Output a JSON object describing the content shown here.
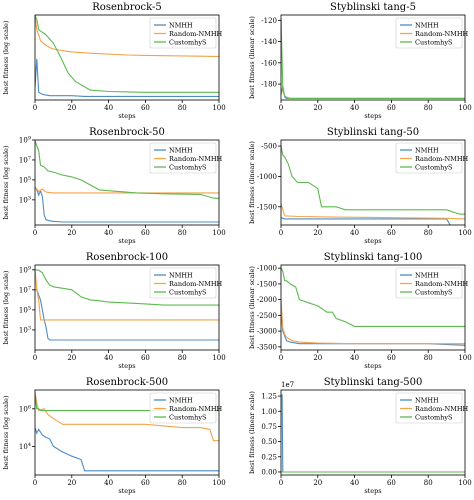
{
  "colors": {
    "NMHH": "#4c8cc6",
    "Random-NMHH": "#f2a34c",
    "CustomhyS": "#5cba4e"
  },
  "chart_data": [
    {
      "type": "line",
      "title": "Rosenbrock-5",
      "xlabel": "steps",
      "ylabel": "best fitness (log scale)",
      "yscale": "log",
      "xlim": [
        0,
        100
      ],
      "ylim": [
        1,
        1000000
      ],
      "xticks": [
        "0",
        "20",
        "40",
        "60",
        "80",
        "100"
      ],
      "yticks": [],
      "legend": "top-right",
      "grid": false,
      "series": [
        {
          "name": "NMHH",
          "x": [
            0,
            1,
            2,
            3,
            4,
            6,
            8,
            20,
            27,
            55,
            100
          ],
          "y": [
            8,
            800,
            3.5,
            3,
            2.5,
            2.2,
            2,
            2,
            1.8,
            1.8,
            1.8
          ]
        },
        {
          "name": "Random-NMHH",
          "x": [
            0,
            1,
            2,
            3,
            5,
            8,
            10,
            15,
            20,
            30,
            50,
            60,
            80,
            98,
            100
          ],
          "y": [
            800000,
            90000,
            40000,
            15000,
            9000,
            5000,
            4000,
            3000,
            2500,
            2000,
            1500,
            1400,
            1300,
            1200,
            1200
          ]
        },
        {
          "name": "CustomhyS",
          "x": [
            0,
            1,
            2,
            4,
            6,
            8,
            10,
            14,
            18,
            22,
            30,
            40,
            60,
            80,
            100
          ],
          "y": [
            900000,
            500000,
            90000,
            60000,
            40000,
            20000,
            10000,
            1000,
            80,
            20,
            5,
            4,
            3.5,
            3.5,
            3.5
          ]
        }
      ]
    },
    {
      "type": "line",
      "title": "Styblinski tang-5",
      "xlabel": "steps",
      "ylabel": "best fitness (linear scale)",
      "yscale": "linear",
      "xlim": [
        0,
        100
      ],
      "ylim": [
        -195,
        -115
      ],
      "xticks": [
        "0",
        "20",
        "40",
        "60",
        "80",
        "100"
      ],
      "yticks": [
        "-180",
        "-160",
        "-140",
        "-120"
      ],
      "legend": "top-right",
      "grid": false,
      "series": [
        {
          "name": "NMHH",
          "x": [
            0,
            1,
            2,
            3,
            100
          ],
          "y": [
            -190,
            -182,
            -192,
            -193.5,
            -193.5
          ]
        },
        {
          "name": "Random-NMHH",
          "x": [
            0,
            1,
            2,
            3,
            4,
            100
          ],
          "y": [
            -190,
            -185,
            -191,
            -192.5,
            -193.5,
            -193.5
          ]
        },
        {
          "name": "CustomhyS",
          "x": [
            0,
            0.5,
            1,
            2,
            3,
            5,
            100
          ],
          "y": [
            -118,
            -150,
            -185,
            -191,
            -192.5,
            -193.5,
            -193.5
          ]
        }
      ]
    },
    {
      "type": "line",
      "title": "Rosenbrock-50",
      "xlabel": "steps",
      "ylabel": "best fitness (log scale)",
      "yscale": "log",
      "xlim": [
        0,
        100
      ],
      "ylim": [
        3,
        1000000000
      ],
      "xticks": [
        "0",
        "20",
        "40",
        "60",
        "80",
        "100"
      ],
      "yticks": [
        "10^3",
        "10^5",
        "10^7",
        "10^9"
      ],
      "legend": "top-right",
      "grid": false,
      "series": [
        {
          "name": "NMHH",
          "x": [
            0,
            1,
            2,
            3,
            4,
            5,
            6,
            8,
            10,
            15,
            100
          ],
          "y": [
            20000,
            10000,
            3000,
            8000,
            2000,
            30,
            10,
            8,
            7,
            6,
            6
          ]
        },
        {
          "name": "Random-NMHH",
          "x": [
            0,
            2,
            4,
            6,
            10,
            20,
            100
          ],
          "y": [
            20000,
            7000,
            12000,
            6000,
            5000,
            5000,
            5000
          ]
        },
        {
          "name": "CustomhyS",
          "x": [
            0,
            2,
            3,
            5,
            7,
            10,
            15,
            20,
            25,
            35,
            45,
            55,
            70,
            90,
            97,
            100
          ],
          "y": [
            800000000,
            80000000,
            3000000,
            2000000,
            800000,
            600000,
            300000,
            200000,
            100000,
            10000,
            7000,
            5000,
            4000,
            3500,
            1500,
            1400
          ]
        }
      ]
    },
    {
      "type": "line",
      "title": "Styblinski tang-50",
      "xlabel": "steps",
      "ylabel": "best fitness (linear scale)",
      "yscale": "linear",
      "xlim": [
        0,
        100
      ],
      "ylim": [
        -1800,
        -400
      ],
      "xticks": [
        "0",
        "20",
        "40",
        "60",
        "80",
        "100"
      ],
      "yticks": [
        "-1500",
        "-1000",
        "-500"
      ],
      "legend": "top-right",
      "grid": false,
      "series": [
        {
          "name": "NMHH",
          "x": [
            0,
            2,
            10,
            30,
            60,
            90,
            93,
            100
          ],
          "y": [
            -1680,
            -1700,
            -1700,
            -1700,
            -1700,
            -1700,
            -1860,
            -1860
          ]
        },
        {
          "name": "Random-NMHH",
          "x": [
            0,
            2,
            10,
            30,
            60,
            90,
            100
          ],
          "y": [
            -1450,
            -1650,
            -1660,
            -1670,
            -1680,
            -1690,
            -1700
          ]
        },
        {
          "name": "CustomhyS",
          "x": [
            0,
            1,
            2,
            4,
            6,
            9,
            15,
            20,
            22,
            25,
            30,
            35,
            45,
            55,
            75,
            90,
            97,
            100
          ],
          "y": [
            -500,
            -650,
            -680,
            -800,
            -1000,
            -1100,
            -1100,
            -1200,
            -1500,
            -1500,
            -1500,
            -1550,
            -1550,
            -1550,
            -1550,
            -1550,
            -1620,
            -1620
          ]
        }
      ]
    },
    {
      "type": "line",
      "title": "Rosenbrock-100",
      "xlabel": "steps",
      "ylabel": "best fitness (log scale)",
      "yscale": "log",
      "xlim": [
        0,
        100
      ],
      "ylim": [
        10,
        3000000000
      ],
      "xticks": [
        "0",
        "20",
        "40",
        "60",
        "80",
        "100"
      ],
      "yticks": [
        "10^3",
        "10^5",
        "10^7",
        "10^9"
      ],
      "legend": "top-right",
      "grid": false,
      "series": [
        {
          "name": "NMHH",
          "x": [
            0,
            1,
            2,
            3,
            5,
            6,
            7,
            8,
            10,
            15,
            100
          ],
          "y": [
            10000000,
            10000000,
            3000000,
            1000000,
            10000,
            2000,
            150,
            100,
            100,
            100,
            100
          ]
        },
        {
          "name": "Random-NMHH",
          "x": [
            0,
            1,
            2,
            3,
            4,
            100
          ],
          "y": [
            1000000000,
            10000000,
            1000000,
            10000,
            10000,
            10000
          ]
        },
        {
          "name": "CustomhyS",
          "x": [
            0,
            2,
            4,
            6,
            8,
            10,
            20,
            25,
            30,
            35,
            40,
            50,
            60,
            70,
            80,
            90,
            100
          ],
          "y": [
            1000000000,
            900000000,
            500000000,
            100000000,
            30000000,
            20000000,
            10000000,
            2000000,
            1000000,
            800000,
            600000,
            500000,
            400000,
            300000,
            300000,
            300000,
            300000
          ]
        }
      ]
    },
    {
      "type": "line",
      "title": "Styblinski tang-100",
      "xlabel": "steps",
      "ylabel": "best fitness (linear scale)",
      "yscale": "linear",
      "xlim": [
        0,
        100
      ],
      "ylim": [
        -3600,
        -900
      ],
      "xticks": [
        "0",
        "20",
        "40",
        "60",
        "80",
        "100"
      ],
      "yticks": [
        "-3500",
        "-3000",
        "-2500",
        "-2000",
        "-1500",
        "-1000"
      ],
      "legend": "top-right",
      "grid": false,
      "series": [
        {
          "name": "NMHH",
          "x": [
            0,
            1,
            3,
            5,
            10,
            20,
            40,
            60,
            80,
            100
          ],
          "y": [
            -2300,
            -3000,
            -3300,
            -3350,
            -3400,
            -3400,
            -3400,
            -3400,
            -3400,
            -3450
          ]
        },
        {
          "name": "Random-NMHH",
          "x": [
            0,
            1,
            2,
            3,
            6,
            10,
            20,
            40,
            60,
            80,
            100
          ],
          "y": [
            -2000,
            -2900,
            -3100,
            -3200,
            -3300,
            -3350,
            -3380,
            -3400,
            -3400,
            -3400,
            -3400
          ]
        },
        {
          "name": "CustomhyS",
          "x": [
            0,
            1,
            2,
            3,
            5,
            8,
            10,
            15,
            20,
            25,
            28,
            30,
            35,
            40,
            60,
            80,
            100
          ],
          "y": [
            -1000,
            -1100,
            -1400,
            -1400,
            -1500,
            -1600,
            -2000,
            -2100,
            -2200,
            -2400,
            -2400,
            -2600,
            -2700,
            -2850,
            -2850,
            -2850,
            -2850
          ]
        }
      ]
    },
    {
      "type": "line",
      "title": "Rosenbrock-500",
      "xlabel": "steps",
      "ylabel": "best fitness (log scale)",
      "yscale": "log",
      "xlim": [
        0,
        100
      ],
      "ylim": [
        300,
        10000000
      ],
      "xticks": [
        "0",
        "20",
        "40",
        "60",
        "80",
        "100"
      ],
      "yticks": [
        "10^4",
        "10^6"
      ],
      "legend": "top-right",
      "grid": false,
      "series": [
        {
          "name": "NMHH",
          "x": [
            0,
            1,
            2,
            4,
            6,
            8,
            10,
            15,
            20,
            25,
            27,
            30,
            50,
            100
          ],
          "y": [
            100000,
            50000,
            80000,
            40000,
            30000,
            25000,
            10000,
            5000,
            3000,
            2000,
            500,
            500,
            500,
            500
          ]
        },
        {
          "name": "Random-NMHH",
          "x": [
            0,
            1,
            2,
            3,
            5,
            7,
            10,
            15,
            20,
            40,
            60,
            80,
            90,
            95,
            97,
            100
          ],
          "y": [
            8000000,
            2000000,
            800000,
            900000,
            1000000,
            500000,
            300000,
            150000,
            150000,
            150000,
            150000,
            100000,
            100000,
            80000,
            20000,
            20000
          ]
        },
        {
          "name": "CustomhyS",
          "x": [
            0,
            1,
            2,
            3,
            5,
            100
          ],
          "y": [
            5000000,
            1000000,
            1000000,
            800000,
            800000,
            800000
          ]
        }
      ]
    },
    {
      "type": "line",
      "title": "Styblinski tang-500",
      "xlabel": "steps",
      "ylabel": "best fitness (linear scale)",
      "yscale": "linear",
      "xlim": [
        0,
        100
      ],
      "ylim": [
        -0.05,
        1.35
      ],
      "offset_label": "1e7",
      "xticks": [
        "0",
        "20",
        "40",
        "60",
        "80",
        "100"
      ],
      "yticks": [
        "0.00",
        "0.25",
        "0.50",
        "0.75",
        "1.00",
        "1.25"
      ],
      "legend": "top-right",
      "grid": false,
      "series": [
        {
          "name": "NMHH",
          "x": [
            0,
            0.6,
            1,
            100
          ],
          "y": [
            1.27,
            1.27,
            0,
            0
          ]
        },
        {
          "name": "Random-NMHH",
          "x": [
            0,
            1,
            100
          ],
          "y": [
            0,
            0,
            0
          ]
        },
        {
          "name": "CustomhyS",
          "x": [
            0,
            1,
            100
          ],
          "y": [
            0,
            0,
            0
          ]
        }
      ]
    }
  ]
}
